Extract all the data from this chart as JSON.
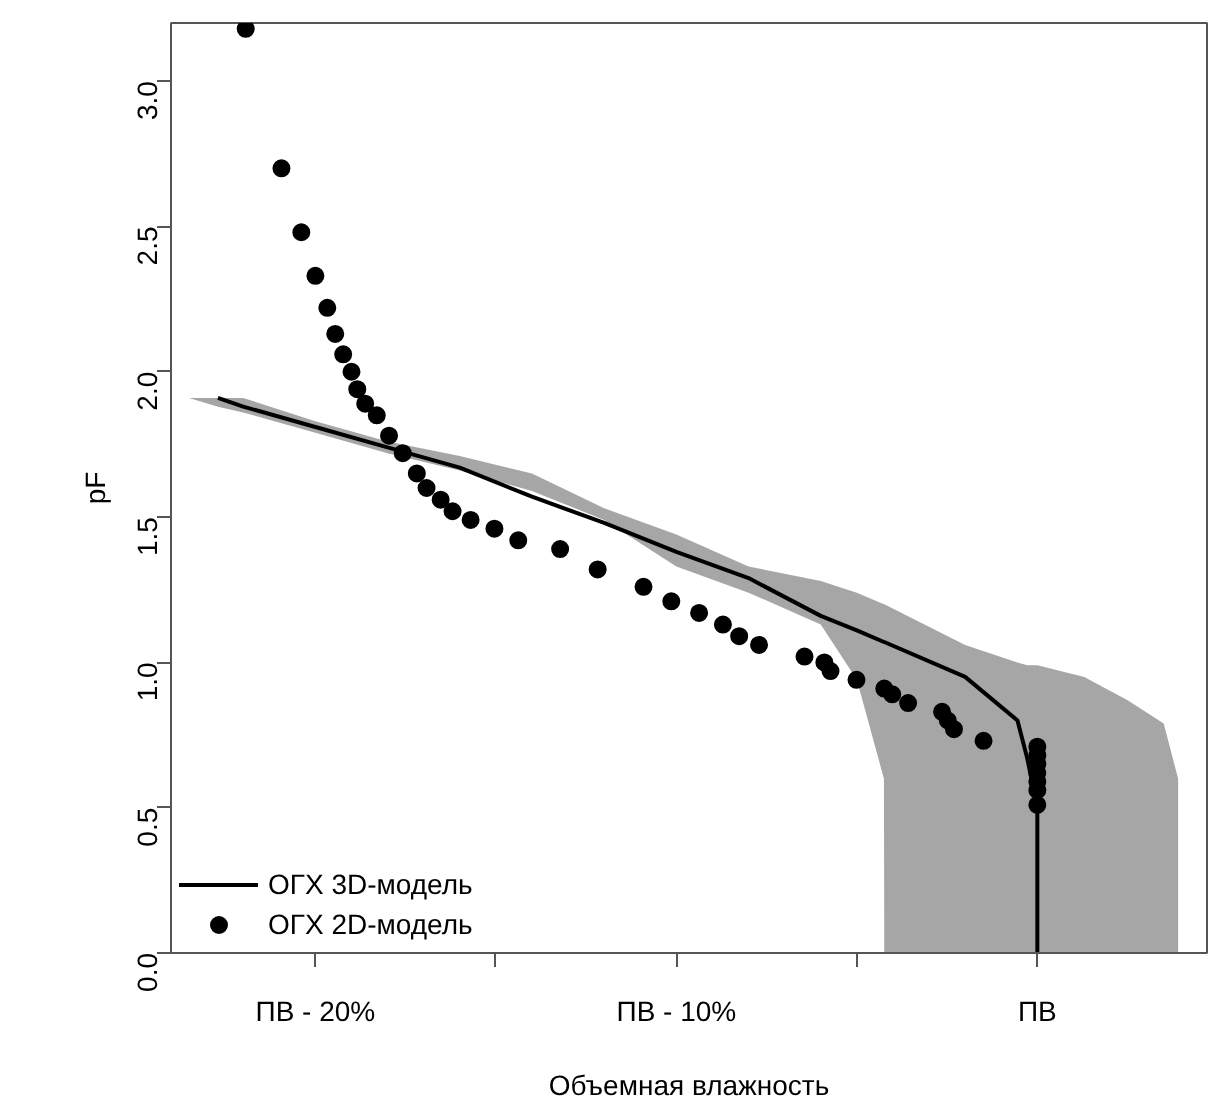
{
  "chart_data": {
    "type": "line",
    "xlabel": "Объемная влажность",
    "ylabel": "pF",
    "xlim": [
      -24,
      4.7
    ],
    "ylim": [
      0,
      3.2
    ],
    "xticks": [
      {
        "value": -20,
        "label": "ПВ - 20%"
      },
      {
        "value": -15,
        "label": null
      },
      {
        "value": -10,
        "label": "ПВ - 10%"
      },
      {
        "value": -5,
        "label": null
      },
      {
        "value": 0,
        "label": "ПВ"
      }
    ],
    "yticks": [
      {
        "value": 0,
        "label": "0.0"
      },
      {
        "value": 0.5,
        "label": "0.5"
      },
      {
        "value": 1,
        "label": "1.0"
      },
      {
        "value": 1.5,
        "label": "1.5"
      },
      {
        "value": 2,
        "label": "2.0"
      },
      {
        "value": 2.5,
        "label": "2.5"
      },
      {
        "value": 3,
        "label": "3.0"
      }
    ],
    "grid": false,
    "legend": "bottom left",
    "series": [
      {
        "name": "ОГХ 3D-модель",
        "color": "#000000",
        "line_style": "solid",
        "x": [
          -23.5,
          -22.7,
          -22,
          -20,
          -18,
          -16,
          -14,
          -12,
          -10,
          -8,
          -6,
          -5,
          -4.25,
          -4.24,
          -2,
          -0.55,
          -0.28,
          0,
          0,
          1.3,
          2.5,
          3.5,
          3.9
        ],
        "values": [
          null,
          1.91,
          1.88,
          1.81,
          1.74,
          1.67,
          1.57,
          1.48,
          1.38,
          1.29,
          1.16,
          1.11,
          1.07,
          1.07,
          0.95,
          0.8,
          0.67,
          0.5,
          0,
          null,
          null,
          null,
          null
        ],
        "upper": [
          1.91,
          1.91,
          1.91,
          1.83,
          1.76,
          1.71,
          1.65,
          1.53,
          1.44,
          1.33,
          1.28,
          1.24,
          1.2,
          1.2,
          1.06,
          1.0,
          0.99,
          0.99,
          0.99,
          0.95,
          0.87,
          0.79,
          0.6
        ],
        "lower": [
          1.91,
          1.88,
          1.86,
          1.79,
          1.72,
          1.66,
          1.59,
          1.49,
          1.33,
          1.24,
          1.13,
          0.94,
          0.6,
          0,
          0,
          0,
          0,
          0,
          0,
          0,
          0,
          0,
          0
        ]
      },
      {
        "name": "ОГХ 2D-модель",
        "type": "scatter",
        "color": "#000000",
        "marker": "circle",
        "x": [
          -21.93,
          -20.94,
          -20.39,
          -20.0,
          -19.67,
          -19.45,
          -19.23,
          -19.0,
          -18.84,
          -18.62,
          -18.3,
          -17.96,
          -17.58,
          -17.19,
          -16.92,
          -16.53,
          -16.2,
          -15.7,
          -15.04,
          -14.38,
          -13.22,
          -12.18,
          -10.91,
          -10.14,
          -9.37,
          -8.71,
          -8.26,
          -7.71,
          -6.45,
          -5.9,
          -5.73,
          -5.01,
          -4.24,
          -4.02,
          -3.58,
          -2.64,
          -2.48,
          -2.31,
          -1.49,
          0,
          0,
          0,
          0,
          0,
          0,
          0
        ],
        "values": [
          3.18,
          2.7,
          2.48,
          2.33,
          2.22,
          2.13,
          2.06,
          2.0,
          1.94,
          1.89,
          1.85,
          1.78,
          1.72,
          1.65,
          1.6,
          1.56,
          1.52,
          1.49,
          1.46,
          1.42,
          1.39,
          1.32,
          1.26,
          1.21,
          1.17,
          1.13,
          1.09,
          1.06,
          1.02,
          1.0,
          0.97,
          0.94,
          0.91,
          0.89,
          0.86,
          0.83,
          0.8,
          0.77,
          0.73,
          0.71,
          0.68,
          0.65,
          0.62,
          0.59,
          0.56,
          0.51
        ]
      }
    ]
  }
}
